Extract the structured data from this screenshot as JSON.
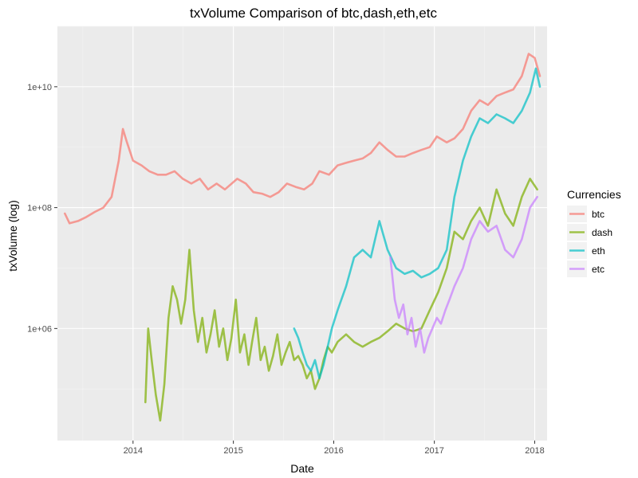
{
  "chart_data": {
    "type": "line",
    "title": "txVolume  Comparison of  btc,dash,eth,etc",
    "xlabel": "Date",
    "ylabel": "txVolume (log)",
    "log_y": true,
    "grid": true,
    "xlim": [
      "2013-04-01",
      "2018-02-15"
    ],
    "ylim": [
      14000,
      100000000000
    ],
    "x_ticks": [
      "2014-01-01",
      "2015-01-01",
      "2016-01-01",
      "2017-01-01",
      "2018-01-01"
    ],
    "x_tick_labels": [
      "2014",
      "2015",
      "2016",
      "2017",
      "2018"
    ],
    "y_ticks": [
      1000000,
      100000000,
      10000000000
    ],
    "y_tick_labels": [
      "1e+06",
      "1e+08",
      "1e+10"
    ],
    "legend": {
      "title": "Currencies",
      "position": "right"
    },
    "series": [
      {
        "name": "btc",
        "color": "#F8766D",
        "points": [
          [
            "2013-04-28",
            80000000
          ],
          [
            "2013-05-15",
            55000000
          ],
          [
            "2013-06-15",
            60000000
          ],
          [
            "2013-07-15",
            70000000
          ],
          [
            "2013-08-15",
            85000000
          ],
          [
            "2013-09-15",
            100000000
          ],
          [
            "2013-10-15",
            150000000
          ],
          [
            "2013-11-10",
            600000000
          ],
          [
            "2013-11-25",
            2000000000
          ],
          [
            "2013-12-10",
            1200000000
          ],
          [
            "2014-01-01",
            600000000
          ],
          [
            "2014-02-01",
            500000000
          ],
          [
            "2014-03-01",
            400000000
          ],
          [
            "2014-04-01",
            350000000
          ],
          [
            "2014-05-01",
            350000000
          ],
          [
            "2014-06-01",
            400000000
          ],
          [
            "2014-07-01",
            300000000
          ],
          [
            "2014-08-01",
            250000000
          ],
          [
            "2014-09-01",
            300000000
          ],
          [
            "2014-10-01",
            200000000
          ],
          [
            "2014-11-01",
            250000000
          ],
          [
            "2014-12-01",
            200000000
          ],
          [
            "2015-01-15",
            300000000
          ],
          [
            "2015-02-15",
            250000000
          ],
          [
            "2015-03-15",
            180000000
          ],
          [
            "2015-04-15",
            170000000
          ],
          [
            "2015-05-15",
            150000000
          ],
          [
            "2015-06-15",
            180000000
          ],
          [
            "2015-07-15",
            250000000
          ],
          [
            "2015-08-15",
            220000000
          ],
          [
            "2015-09-15",
            200000000
          ],
          [
            "2015-10-15",
            250000000
          ],
          [
            "2015-11-10",
            400000000
          ],
          [
            "2015-12-15",
            350000000
          ],
          [
            "2016-01-15",
            500000000
          ],
          [
            "2016-02-15",
            550000000
          ],
          [
            "2016-03-15",
            600000000
          ],
          [
            "2016-04-15",
            650000000
          ],
          [
            "2016-05-15",
            800000000
          ],
          [
            "2016-06-15",
            1200000000
          ],
          [
            "2016-07-15",
            900000000
          ],
          [
            "2016-08-15",
            700000000
          ],
          [
            "2016-09-15",
            700000000
          ],
          [
            "2016-10-15",
            800000000
          ],
          [
            "2016-11-15",
            900000000
          ],
          [
            "2016-12-15",
            1000000000
          ],
          [
            "2017-01-10",
            1500000000
          ],
          [
            "2017-02-15",
            1200000000
          ],
          [
            "2017-03-15",
            1400000000
          ],
          [
            "2017-04-15",
            2000000000
          ],
          [
            "2017-05-15",
            4000000000
          ],
          [
            "2017-06-15",
            6000000000
          ],
          [
            "2017-07-15",
            5000000000
          ],
          [
            "2017-08-15",
            7000000000
          ],
          [
            "2017-09-15",
            8000000000
          ],
          [
            "2017-10-15",
            9000000000
          ],
          [
            "2017-11-15",
            15000000000
          ],
          [
            "2017-12-10",
            35000000000
          ],
          [
            "2018-01-01",
            30000000000
          ],
          [
            "2018-01-20",
            15000000000
          ]
        ]
      },
      {
        "name": "dash",
        "color": "#7CAE00",
        "points": [
          [
            "2014-02-15",
            60000
          ],
          [
            "2014-02-25",
            1000000
          ],
          [
            "2014-03-10",
            300000
          ],
          [
            "2014-03-25",
            80000
          ],
          [
            "2014-04-10",
            30000
          ],
          [
            "2014-04-25",
            120000
          ],
          [
            "2014-05-10",
            1500000
          ],
          [
            "2014-05-25",
            5000000
          ],
          [
            "2014-06-10",
            3000000
          ],
          [
            "2014-06-25",
            1200000
          ],
          [
            "2014-07-10",
            3000000
          ],
          [
            "2014-07-25",
            20000000
          ],
          [
            "2014-08-10",
            2000000
          ],
          [
            "2014-08-25",
            600000
          ],
          [
            "2014-09-10",
            1500000
          ],
          [
            "2014-09-25",
            400000
          ],
          [
            "2014-10-10",
            800000
          ],
          [
            "2014-10-25",
            2000000
          ],
          [
            "2014-11-10",
            500000
          ],
          [
            "2014-11-25",
            1000000
          ],
          [
            "2014-12-10",
            300000
          ],
          [
            "2014-12-25",
            700000
          ],
          [
            "2015-01-10",
            3000000
          ],
          [
            "2015-01-25",
            400000
          ],
          [
            "2015-02-10",
            800000
          ],
          [
            "2015-02-25",
            250000
          ],
          [
            "2015-03-10",
            600000
          ],
          [
            "2015-03-25",
            1500000
          ],
          [
            "2015-04-10",
            300000
          ],
          [
            "2015-04-25",
            500000
          ],
          [
            "2015-05-10",
            200000
          ],
          [
            "2015-05-25",
            350000
          ],
          [
            "2015-06-10",
            800000
          ],
          [
            "2015-06-25",
            250000
          ],
          [
            "2015-07-10",
            400000
          ],
          [
            "2015-07-25",
            600000
          ],
          [
            "2015-08-10",
            300000
          ],
          [
            "2015-08-25",
            350000
          ],
          [
            "2015-09-10",
            250000
          ],
          [
            "2015-09-25",
            150000
          ],
          [
            "2015-10-10",
            200000
          ],
          [
            "2015-10-25",
            100000
          ],
          [
            "2015-11-10",
            150000
          ],
          [
            "2015-11-25",
            300000
          ],
          [
            "2015-12-10",
            500000
          ],
          [
            "2015-12-25",
            400000
          ],
          [
            "2016-01-15",
            600000
          ],
          [
            "2016-02-15",
            800000
          ],
          [
            "2016-03-15",
            600000
          ],
          [
            "2016-04-15",
            500000
          ],
          [
            "2016-05-15",
            600000
          ],
          [
            "2016-06-15",
            700000
          ],
          [
            "2016-07-15",
            900000
          ],
          [
            "2016-08-15",
            1200000
          ],
          [
            "2016-09-15",
            1000000
          ],
          [
            "2016-10-15",
            900000
          ],
          [
            "2016-11-15",
            1000000
          ],
          [
            "2016-12-15",
            2000000
          ],
          [
            "2017-01-15",
            4000000
          ],
          [
            "2017-02-15",
            10000000
          ],
          [
            "2017-03-15",
            40000000
          ],
          [
            "2017-04-15",
            30000000
          ],
          [
            "2017-05-15",
            60000000
          ],
          [
            "2017-06-15",
            100000000
          ],
          [
            "2017-07-15",
            50000000
          ],
          [
            "2017-08-15",
            200000000
          ],
          [
            "2017-09-15",
            80000000
          ],
          [
            "2017-10-15",
            50000000
          ],
          [
            "2017-11-15",
            150000000
          ],
          [
            "2017-12-15",
            300000000
          ],
          [
            "2018-01-10",
            200000000
          ]
        ]
      },
      {
        "name": "eth",
        "color": "#00BFC4",
        "points": [
          [
            "2015-08-10",
            1000000
          ],
          [
            "2015-08-25",
            700000
          ],
          [
            "2015-09-10",
            400000
          ],
          [
            "2015-09-25",
            250000
          ],
          [
            "2015-10-10",
            200000
          ],
          [
            "2015-10-25",
            300000
          ],
          [
            "2015-11-10",
            150000
          ],
          [
            "2015-11-25",
            250000
          ],
          [
            "2015-12-10",
            500000
          ],
          [
            "2015-12-25",
            1000000
          ],
          [
            "2016-01-15",
            2000000
          ],
          [
            "2016-02-15",
            5000000
          ],
          [
            "2016-03-15",
            15000000
          ],
          [
            "2016-04-15",
            20000000
          ],
          [
            "2016-05-15",
            15000000
          ],
          [
            "2016-06-15",
            60000000
          ],
          [
            "2016-07-15",
            20000000
          ],
          [
            "2016-08-15",
            10000000
          ],
          [
            "2016-09-15",
            8000000
          ],
          [
            "2016-10-15",
            9000000
          ],
          [
            "2016-11-15",
            7000000
          ],
          [
            "2016-12-15",
            8000000
          ],
          [
            "2017-01-15",
            10000000
          ],
          [
            "2017-02-15",
            20000000
          ],
          [
            "2017-03-15",
            150000000
          ],
          [
            "2017-04-15",
            600000000
          ],
          [
            "2017-05-15",
            1500000000
          ],
          [
            "2017-06-15",
            3000000000
          ],
          [
            "2017-07-15",
            2500000000
          ],
          [
            "2017-08-15",
            3500000000
          ],
          [
            "2017-09-15",
            3000000000
          ],
          [
            "2017-10-15",
            2500000000
          ],
          [
            "2017-11-15",
            4000000000
          ],
          [
            "2017-12-15",
            8000000000
          ],
          [
            "2018-01-05",
            20000000000
          ],
          [
            "2018-01-20",
            10000000000
          ]
        ]
      },
      {
        "name": "etc",
        "color": "#C77CFF",
        "points": [
          [
            "2016-07-25",
            15000000
          ],
          [
            "2016-08-10",
            3000000
          ],
          [
            "2016-08-25",
            1500000
          ],
          [
            "2016-09-10",
            2500000
          ],
          [
            "2016-09-25",
            800000
          ],
          [
            "2016-10-10",
            1500000
          ],
          [
            "2016-10-25",
            500000
          ],
          [
            "2016-11-10",
            1000000
          ],
          [
            "2016-11-25",
            400000
          ],
          [
            "2016-12-10",
            700000
          ],
          [
            "2016-12-25",
            1000000
          ],
          [
            "2017-01-10",
            1500000
          ],
          [
            "2017-01-25",
            1200000
          ],
          [
            "2017-02-10",
            2000000
          ],
          [
            "2017-02-25",
            3000000
          ],
          [
            "2017-03-15",
            5000000
          ],
          [
            "2017-04-15",
            10000000
          ],
          [
            "2017-05-15",
            30000000
          ],
          [
            "2017-06-15",
            60000000
          ],
          [
            "2017-07-15",
            40000000
          ],
          [
            "2017-08-15",
            50000000
          ],
          [
            "2017-09-15",
            20000000
          ],
          [
            "2017-10-15",
            15000000
          ],
          [
            "2017-11-15",
            30000000
          ],
          [
            "2017-12-15",
            100000000
          ],
          [
            "2018-01-10",
            150000000
          ]
        ]
      }
    ]
  }
}
